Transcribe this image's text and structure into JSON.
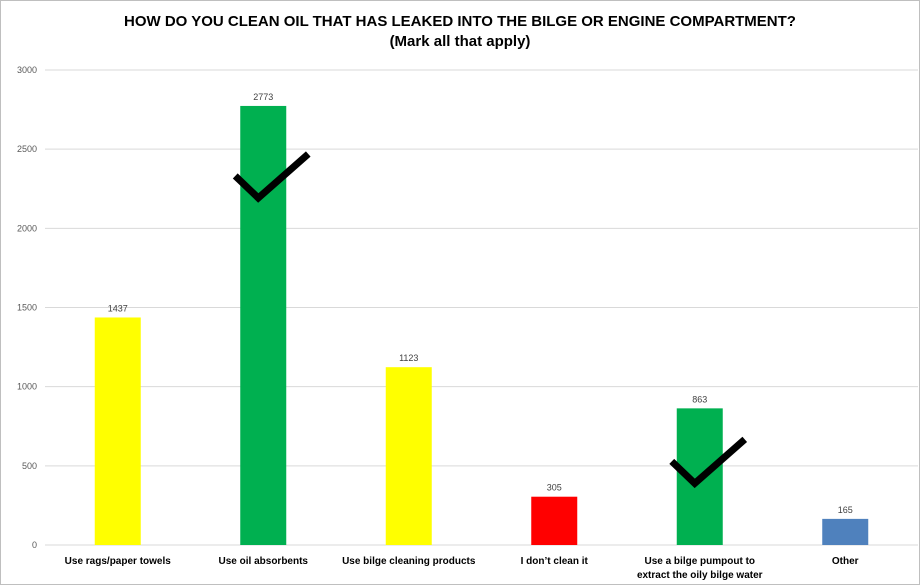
{
  "chart_data": {
    "type": "bar",
    "title": "HOW DO YOU CLEAN OIL THAT HAS LEAKED INTO THE BILGE OR ENGINE COMPARTMENT?",
    "subtitle": "(Mark all that apply)",
    "categories": [
      [
        "Use rags/paper towels"
      ],
      [
        "Use oil absorbents"
      ],
      [
        "Use bilge cleaning products"
      ],
      [
        "I don’t clean it"
      ],
      [
        "Use a bilge pumpout to",
        "extract the oily bilge water"
      ],
      [
        "Other"
      ]
    ],
    "values": [
      1437,
      2773,
      1123,
      305,
      863,
      165
    ],
    "colors": [
      "#ffff00",
      "#00b050",
      "#ffff00",
      "#ff0000",
      "#00b050",
      "#4f81bd"
    ],
    "checkmarks": [
      false,
      true,
      false,
      false,
      true,
      false
    ],
    "ylim": [
      0,
      3000
    ],
    "yticks": [
      0,
      500,
      1000,
      1500,
      2000,
      2500,
      3000
    ],
    "grid": true,
    "xlabel": "",
    "ylabel": ""
  }
}
